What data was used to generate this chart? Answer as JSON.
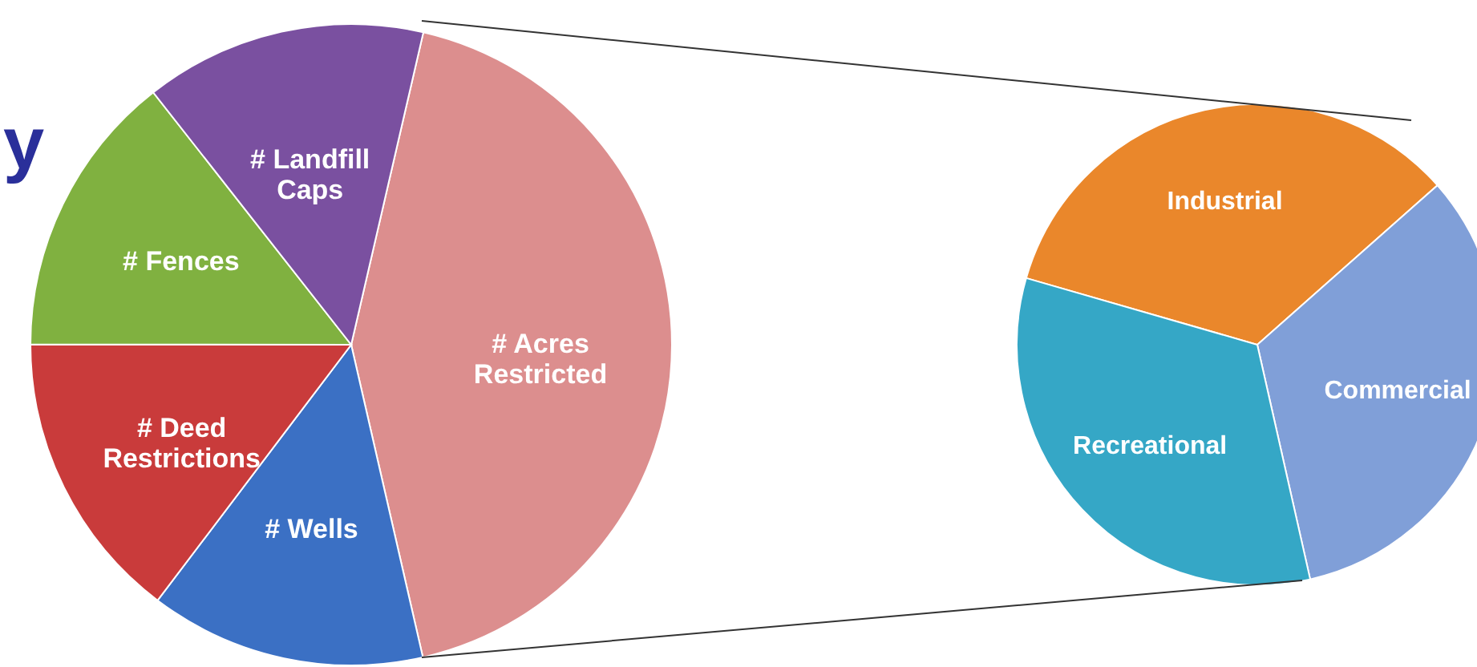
{
  "chart_data": [
    {
      "type": "pie",
      "annotations": [
        "y"
      ],
      "categories": [
        "# Acres Restricted",
        "# Wells",
        "# Deed Restrictions",
        "# Fences",
        "# Landfill Caps"
      ],
      "values": [
        42.8,
        13.9,
        14.7,
        14.4,
        14.2
      ],
      "colors": [
        "#dc8e8e",
        "#3b70c4",
        "#c93b3b",
        "#80b140",
        "#7a50a0"
      ],
      "legend": false
    },
    {
      "type": "pie",
      "categories": [
        "Industrial",
        "Commercial",
        "Recreational"
      ],
      "values": [
        34,
        33,
        33
      ],
      "colors": [
        "#ea872b",
        "#809fd8",
        "#35a7c6"
      ],
      "legend": false
    }
  ]
}
